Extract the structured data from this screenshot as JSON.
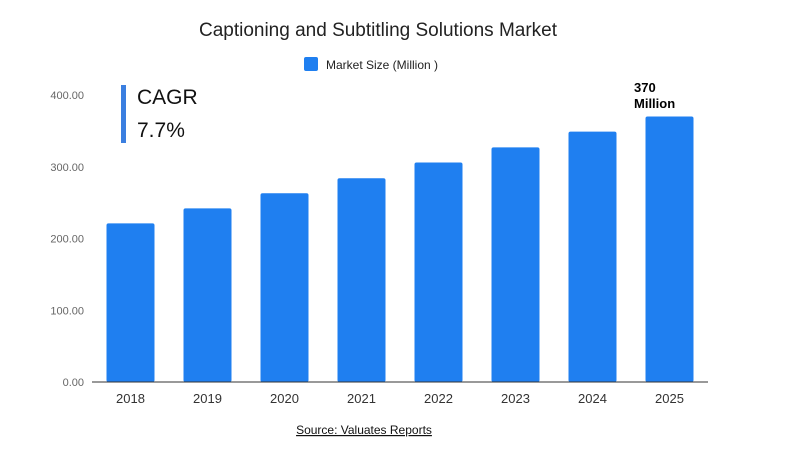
{
  "chart_data": {
    "type": "bar",
    "title": "Captioning and Subtitling Solutions Market",
    "categories": [
      "2018",
      "2019",
      "2020",
      "2021",
      "2022",
      "2023",
      "2024",
      "2025"
    ],
    "series": [
      {
        "name": "Market Size (Million )",
        "values": [
          221,
          242,
          263,
          284,
          306,
          327,
          349,
          370
        ]
      }
    ],
    "ylim": [
      0,
      400
    ],
    "yticks": [
      "0.00",
      "100.00",
      "200.00",
      "300.00",
      "400.00"
    ],
    "legend_position": "top-center",
    "grid": false,
    "colors": {
      "bar": "#1f7ff0",
      "cagr_bar": "#3b7fe0"
    },
    "annotations": {
      "cagr_label": "CAGR",
      "cagr_value": "7.7%",
      "callout_line1": "370",
      "callout_line2": "Million"
    },
    "source": "Source: Valuates Reports"
  }
}
